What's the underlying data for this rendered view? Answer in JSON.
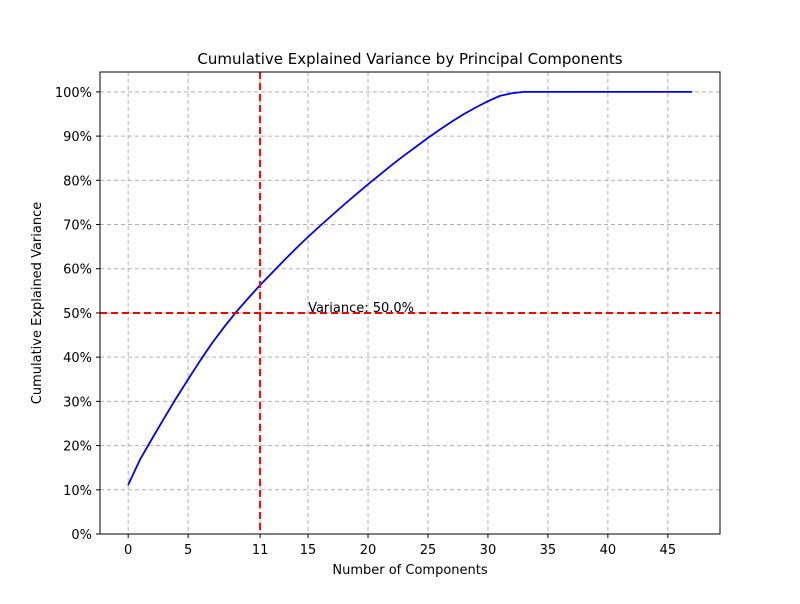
{
  "chart_data": {
    "type": "line",
    "title": "Cumulative Explained Variance by Principal Components",
    "xlabel": "Number of Components",
    "ylabel": "Cumulative Explained Variance",
    "xlim": [
      -2.35,
      49.35
    ],
    "ylim": [
      0,
      1.045
    ],
    "x_ticks": [
      0,
      5,
      11,
      15,
      20,
      25,
      30,
      35,
      40,
      45
    ],
    "x_tick_labels": [
      "0",
      "5",
      "11",
      "15",
      "20",
      "25",
      "30",
      "35",
      "40",
      "45"
    ],
    "y_ticks": [
      0,
      0.1,
      0.2,
      0.3,
      0.4,
      0.5,
      0.6,
      0.7,
      0.8,
      0.9,
      1.0
    ],
    "y_tick_labels": [
      "0%",
      "10%",
      "20%",
      "30%",
      "40%",
      "50%",
      "60%",
      "70%",
      "80%",
      "90%",
      "100%"
    ],
    "grid": true,
    "series": [
      {
        "name": "cumulative-variance",
        "color": "#0000ff",
        "x": [
          0,
          1,
          2,
          3,
          4,
          5,
          6,
          7,
          8,
          9,
          10,
          11,
          12,
          13,
          14,
          15,
          16,
          17,
          18,
          19,
          20,
          21,
          22,
          23,
          24,
          25,
          26,
          27,
          28,
          29,
          30,
          31,
          32,
          33,
          34,
          35,
          36,
          37,
          38,
          39,
          40,
          41,
          42,
          43,
          44,
          45,
          46,
          47
        ],
        "y": [
          0.111,
          0.169,
          0.216,
          0.262,
          0.307,
          0.35,
          0.392,
          0.432,
          0.468,
          0.502,
          0.533,
          0.563,
          0.591,
          0.619,
          0.646,
          0.672,
          0.697,
          0.721,
          0.745,
          0.768,
          0.791,
          0.813,
          0.835,
          0.856,
          0.876,
          0.896,
          0.915,
          0.933,
          0.95,
          0.965,
          0.979,
          0.991,
          0.997,
          1.0,
          1.0,
          1.0,
          1.0,
          1.0,
          1.0,
          1.0,
          1.0,
          1.0,
          1.0,
          1.0,
          1.0,
          1.0,
          1.0,
          1.0
        ]
      }
    ],
    "reference_lines": [
      {
        "name": "threshold-line",
        "orientation": "horizontal",
        "value": 0.5,
        "color": "#ff0000",
        "style": "dashed"
      },
      {
        "name": "selected-components-line",
        "orientation": "vertical",
        "value": 11,
        "color": "#ff0000",
        "style": "dashed"
      }
    ],
    "annotations": [
      {
        "text": "Variance: 50.0%",
        "x": 15,
        "y": 0.5
      }
    ]
  }
}
